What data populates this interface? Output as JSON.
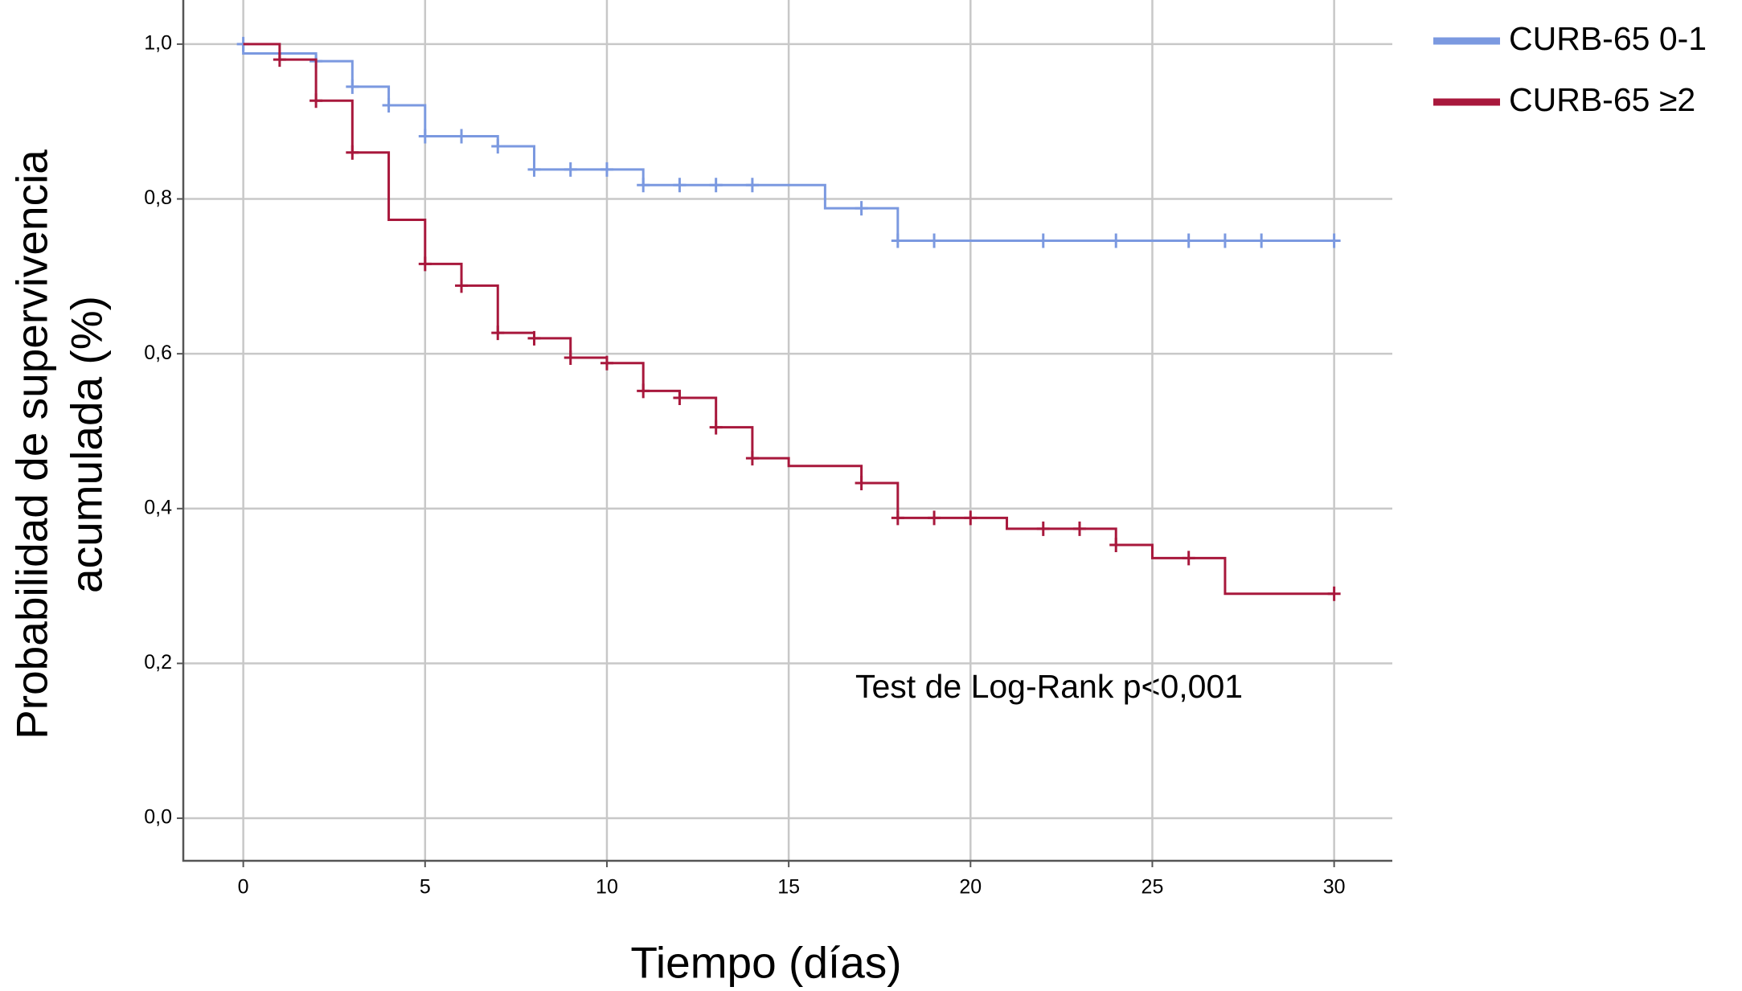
{
  "chart_data": {
    "type": "step",
    "x_label": "Tiempo (días)",
    "y_label": [
      "Probabilidad de supervivencia",
      "acumulada (%)"
    ],
    "annotation": "Test de Log-Rank p<0,001",
    "xlim": [
      -1.65,
      31.6
    ],
    "ylim": [
      -0.055,
      1.057
    ],
    "xticks": [
      0,
      5,
      10,
      15,
      20,
      25,
      30
    ],
    "yticks": [
      {
        "value": 0,
        "label": "0,0"
      },
      {
        "value": 0.2,
        "label": "0,2"
      },
      {
        "value": 0.4,
        "label": "0,4"
      },
      {
        "value": 0.6,
        "label": "0,6"
      },
      {
        "value": 0.8,
        "label": "0,8"
      },
      {
        "value": 1,
        "label": "1,0"
      }
    ],
    "grid": true,
    "legend": "top-right",
    "series": [
      {
        "name": "CURB-65 0-1",
        "color": "#7b99e0",
        "x": [
          0,
          0,
          2,
          3,
          4,
          5,
          7,
          8,
          11,
          16,
          18,
          30
        ],
        "values": [
          1,
          0.988,
          0.978,
          0.945,
          0.921,
          0.881,
          0.868,
          0.838,
          0.818,
          0.788,
          0.746,
          0.746
        ],
        "censor_x": [
          0,
          2,
          3,
          4,
          5,
          6,
          7,
          8,
          9,
          10,
          11,
          12,
          13,
          14,
          17,
          18,
          19,
          22,
          24,
          26,
          27,
          28,
          30
        ],
        "censor_values": [
          1,
          0.978,
          0.945,
          0.921,
          0.881,
          0.881,
          0.868,
          0.838,
          0.838,
          0.838,
          0.818,
          0.818,
          0.818,
          0.818,
          0.788,
          0.746,
          0.746,
          0.746,
          0.746,
          0.746,
          0.746,
          0.746,
          0.746
        ]
      },
      {
        "name": "CURB-65 ≥2",
        "color": "#a8183c",
        "x": [
          0,
          1,
          2,
          3,
          4,
          5,
          6,
          7,
          8,
          9,
          10,
          11,
          12,
          13,
          14,
          15,
          17,
          18,
          21,
          24,
          25,
          27,
          30
        ],
        "values": [
          1,
          0.98,
          0.927,
          0.86,
          0.773,
          0.716,
          0.688,
          0.627,
          0.62,
          0.595,
          0.588,
          0.552,
          0.543,
          0.505,
          0.465,
          0.455,
          0.433,
          0.388,
          0.374,
          0.353,
          0.336,
          0.29,
          0.29
        ],
        "censor_x": [
          1,
          2,
          3,
          5,
          6,
          7,
          8,
          9,
          10,
          11,
          12,
          13,
          14,
          17,
          18,
          19,
          20,
          22,
          23,
          24,
          26,
          30
        ],
        "censor_values": [
          0.98,
          0.927,
          0.86,
          0.716,
          0.688,
          0.627,
          0.62,
          0.595,
          0.588,
          0.552,
          0.543,
          0.505,
          0.465,
          0.433,
          0.388,
          0.388,
          0.388,
          0.374,
          0.374,
          0.353,
          0.336,
          0.29
        ]
      }
    ]
  }
}
